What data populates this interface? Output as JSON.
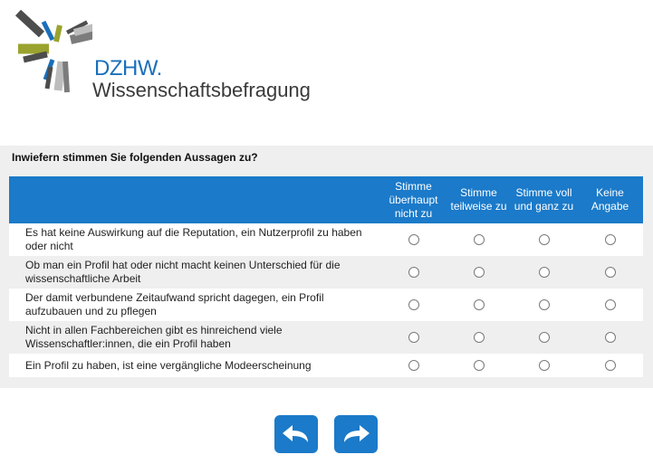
{
  "logo": {
    "brand": "DZHW.",
    "subtitle": "Wissenschaftsbefragung",
    "colors": [
      "#4d4d4d",
      "#9aa32e",
      "#1a6fba",
      "#7c7c7c",
      "#bdbdbd"
    ]
  },
  "question": {
    "text": "Inwiefern stimmen Sie folgenden Aussagen zu?"
  },
  "columns": [
    "Stimme überhaupt nicht zu",
    "Stimme teilweise zu",
    "Stimme voll und ganz zu",
    "Keine Angabe"
  ],
  "statements": [
    "Es hat keine Auswirkung auf die Reputation, ein Nutzerprofil zu haben oder nicht",
    "Ob man ein Profil hat oder nicht macht keinen Unterschied für die wissenschaftliche Arbeit",
    "Der damit verbundene Zeitaufwand spricht dagegen, ein Profil aufzubauen und zu pflegen",
    "Nicht in allen Fachbereichen gibt es hinreichend viele Wissenschaftler:innen, die ein Profil haben",
    "Ein Profil zu haben, ist eine vergängliche Modeerscheinung"
  ],
  "navigation": {
    "back_icon": "undo-arrow-icon",
    "next_icon": "redo-arrow-icon",
    "button_color": "#1b7ac9"
  },
  "colors": {
    "header_blue": "#1b7ac9",
    "panel_grey": "#efefef"
  }
}
